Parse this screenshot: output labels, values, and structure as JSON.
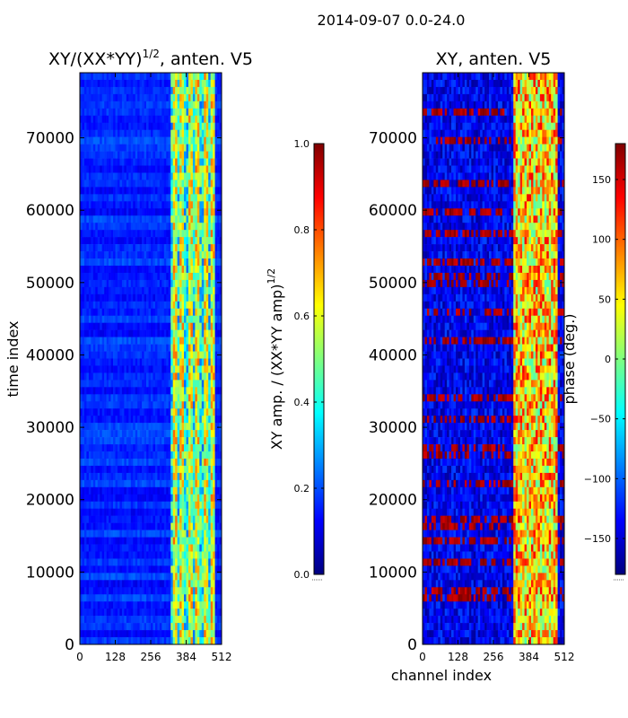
{
  "suptitle": "2014-09-07 0.0-24.0",
  "colors": {
    "jet": [
      "#00007f",
      "#0000ff",
      "#007fff",
      "#00ffff",
      "#7fff7f",
      "#ffff00",
      "#ff7f00",
      "#ff0000",
      "#7f0000"
    ],
    "background": "#ffffff"
  },
  "chart_data": [
    {
      "type": "heatmap",
      "title_main": "XY/(XX*YY)",
      "title_sup": "1/2",
      "title_rest": ", anten. V5",
      "xlabel": "",
      "ylabel": "time index",
      "x_ticks": [
        0,
        128,
        256,
        384,
        512
      ],
      "x_tick_labels": [
        "0",
        "128",
        "256",
        "384",
        "512"
      ],
      "y_ticks": [
        0,
        10000,
        20000,
        30000,
        40000,
        50000,
        60000,
        70000
      ],
      "y_tick_labels": [
        "0",
        "10000",
        "20000",
        "30000",
        "40000",
        "50000",
        "60000",
        "70000"
      ],
      "xlim": [
        0,
        512
      ],
      "ylim": [
        0,
        79000
      ],
      "colorbar": {
        "label_main": "XY amp. / (XX*YY amp)",
        "label_sup": "1/2",
        "range": [
          0.0,
          1.0
        ],
        "ticks": [
          0.0,
          0.2,
          0.4,
          0.6,
          0.8,
          1.0
        ],
        "tick_labels": [
          "0.0",
          "0.2",
          "0.4",
          "0.6",
          "0.8",
          "1.0"
        ]
      },
      "description_values": {
        "low_channel_level": 0.12,
        "high_channel_band": [
          325,
          490
        ],
        "high_channel_level": 0.45
      }
    },
    {
      "type": "heatmap",
      "title_main": "XY, anten. V5",
      "xlabel": "channel index",
      "ylabel": "",
      "x_ticks": [
        0,
        128,
        256,
        384,
        512
      ],
      "x_tick_labels": [
        "0",
        "128",
        "256",
        "384",
        "512"
      ],
      "y_ticks": [
        0,
        10000,
        20000,
        30000,
        40000,
        50000,
        60000,
        70000
      ],
      "y_tick_labels": [
        "0",
        "10000",
        "20000",
        "30000",
        "40000",
        "50000",
        "60000",
        "70000"
      ],
      "xlim": [
        0,
        512
      ],
      "ylim": [
        0,
        79000
      ],
      "colorbar": {
        "label": "phase (deg.)",
        "range": [
          -180,
          180
        ],
        "ticks": [
          -150,
          -100,
          -50,
          0,
          50,
          100,
          150
        ],
        "tick_labels": [
          "−150",
          "−100",
          "−50",
          "0",
          "50",
          "100",
          "150"
        ]
      },
      "description_values": {
        "low_channel_phase": -140,
        "high_channel_band": [
          325,
          490
        ],
        "high_channel_phase": 60
      }
    }
  ]
}
